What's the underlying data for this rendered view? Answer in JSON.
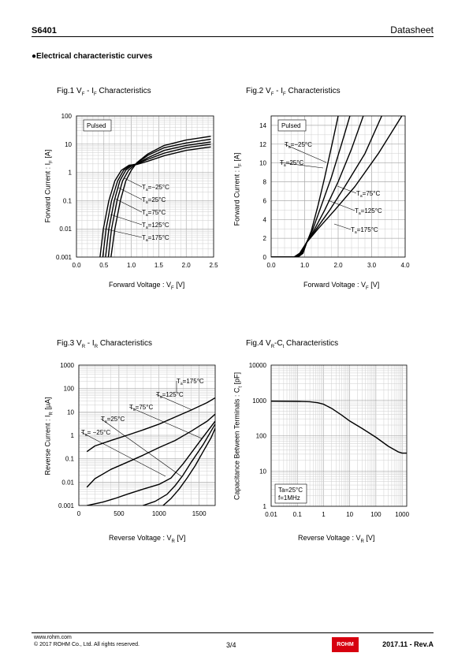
{
  "header": {
    "part_number": "S6401",
    "doc_type": "Datasheet"
  },
  "section_title": "●Electrical characteristic curves",
  "footer": {
    "url": "www.rohm.com",
    "copyright": "© 2017  ROHM Co., Ltd. All rights reserved.",
    "page": "3/4",
    "logo_text": "ROHM",
    "revision": "2017.11 -  Rev.A"
  },
  "colors": {
    "curve": "#000000",
    "grid_major": "#9a9a9a",
    "grid_minor": "#cfcfcf",
    "logo": "#d7000f"
  },
  "chart_data": [
    {
      "type": "line",
      "title": "Fig.1 VF - IF Characteristics",
      "xlabel": "Forward Voltage : VF   [V]",
      "ylabel": "Forward Current : IF   [A]",
      "xlim": [
        0,
        2.5
      ],
      "ylim": [
        0.001,
        100
      ],
      "yscale": "log",
      "xticks": [
        "0.0",
        "0.5",
        "1.0",
        "1.5",
        "2.0",
        "2.5"
      ],
      "yticks": [
        "0.001",
        "0.01",
        "0.1",
        "1",
        "10",
        "100"
      ],
      "grid": true,
      "legend_box": "Pulsed",
      "series": [
        {
          "name": "Ta=−25°C",
          "x": [
            0.63,
            0.7,
            0.8,
            0.9,
            1.0,
            1.1,
            1.3,
            1.6,
            2.0,
            2.45
          ],
          "y": [
            0.001,
            0.01,
            0.1,
            0.5,
            1.2,
            2.2,
            4.5,
            9,
            14,
            19
          ]
        },
        {
          "name": "Ta=25°C",
          "x": [
            0.58,
            0.64,
            0.74,
            0.84,
            0.95,
            1.05,
            1.1,
            1.3,
            1.6,
            2.0,
            2.45
          ],
          "y": [
            0.001,
            0.01,
            0.1,
            0.5,
            1.2,
            1.8,
            2.1,
            4,
            7.5,
            11,
            15
          ]
        },
        {
          "name": "Ta=75°C",
          "x": [
            0.53,
            0.59,
            0.69,
            0.79,
            0.9,
            1.02,
            1.1,
            1.3,
            1.6,
            2.0,
            2.45
          ],
          "y": [
            0.001,
            0.01,
            0.1,
            0.5,
            1.2,
            1.8,
            2.0,
            3.3,
            6,
            9,
            12
          ]
        },
        {
          "name": "Ta=125°C",
          "x": [
            0.48,
            0.54,
            0.64,
            0.75,
            0.86,
            0.99,
            1.1,
            1.3,
            1.6,
            2.0,
            2.45
          ],
          "y": [
            0.001,
            0.01,
            0.1,
            0.5,
            1.2,
            1.8,
            2.0,
            2.9,
            4.8,
            7.5,
            10
          ]
        },
        {
          "name": "Ta=175°C",
          "x": [
            0.43,
            0.49,
            0.59,
            0.7,
            0.82,
            0.96,
            1.1,
            1.3,
            1.6,
            2.0,
            2.45
          ],
          "y": [
            0.001,
            0.01,
            0.1,
            0.5,
            1.2,
            1.8,
            1.9,
            2.5,
            3.9,
            6,
            8
          ]
        }
      ]
    },
    {
      "type": "line",
      "title": "Fig.2 VF - IF Characteristics",
      "xlabel": "Forward Voltage : VF   [V]",
      "ylabel": "Forward Current : IF   [A]",
      "xlim": [
        0,
        4.0
      ],
      "ylim": [
        0,
        15
      ],
      "xticks": [
        "0.0",
        "1.0",
        "2.0",
        "3.0",
        "4.0"
      ],
      "yticks": [
        "0",
        "2",
        "4",
        "6",
        "8",
        "10",
        "12",
        "14"
      ],
      "grid": true,
      "legend_box": "Pulsed",
      "series": [
        {
          "name": "Ta=−25°C",
          "x": [
            0,
            0.8,
            0.95,
            1.05,
            1.2,
            1.4,
            1.6,
            1.85,
            2.0
          ],
          "y": [
            0,
            0,
            0.4,
            1.4,
            2.8,
            5.5,
            8.5,
            12.5,
            15
          ]
        },
        {
          "name": "Ta=25°C",
          "x": [
            0,
            0.78,
            0.92,
            1.05,
            1.25,
            1.5,
            1.8,
            2.1,
            2.35
          ],
          "y": [
            0,
            0,
            0.4,
            1.5,
            3,
            5.5,
            8.5,
            12,
            15
          ]
        },
        {
          "name": "Ta=75°C",
          "x": [
            0,
            0.75,
            0.9,
            1.05,
            1.3,
            1.6,
            2.0,
            2.4,
            2.75
          ],
          "y": [
            0,
            0,
            0.4,
            1.5,
            3,
            5,
            8,
            11.5,
            15
          ]
        },
        {
          "name": "Ta=125°C",
          "x": [
            0,
            0.72,
            0.88,
            1.05,
            1.35,
            1.75,
            2.2,
            2.8,
            3.3
          ],
          "y": [
            0,
            0,
            0.4,
            1.5,
            3,
            5,
            7.5,
            11,
            15
          ]
        },
        {
          "name": "Ta=175°C",
          "x": [
            0,
            0.68,
            0.85,
            1.05,
            1.4,
            1.9,
            2.5,
            3.2,
            3.9
          ],
          "y": [
            0,
            0,
            0.4,
            1.5,
            3,
            5,
            7.5,
            11,
            15
          ]
        }
      ]
    },
    {
      "type": "line",
      "title": "Fig.3 VR - IR Characteristics",
      "xlabel": "Reverse Voltage : VR   [V]",
      "ylabel": "Reverse Current : IR   [μA]",
      "xlim": [
        0,
        1700
      ],
      "ylim": [
        0.001,
        1000
      ],
      "yscale": "log",
      "xticks": [
        "0",
        "500",
        "1000",
        "1500"
      ],
      "yticks": [
        "0.001",
        "0.01",
        "0.1",
        "1",
        "10",
        "100",
        "1000"
      ],
      "grid": true,
      "series": [
        {
          "name": "Ta=175°C",
          "x": [
            100,
            200,
            400,
            600,
            800,
            1000,
            1200,
            1400,
            1600,
            1700
          ],
          "y": [
            0.2,
            0.35,
            0.6,
            1,
            1.7,
            3,
            6,
            12,
            25,
            40
          ]
        },
        {
          "name": "Ta=125°C",
          "x": [
            100,
            200,
            400,
            600,
            800,
            1000,
            1200,
            1400,
            1600,
            1700
          ],
          "y": [
            0.006,
            0.014,
            0.035,
            0.07,
            0.14,
            0.3,
            0.6,
            1.5,
            4,
            8
          ]
        },
        {
          "name": "Ta=75°C",
          "x": [
            100,
            300,
            450,
            600,
            800,
            1000,
            1150,
            1300,
            1500,
            1700
          ],
          "y": [
            0.001,
            0.0014,
            0.002,
            0.003,
            0.005,
            0.008,
            0.015,
            0.06,
            0.5,
            4
          ]
        },
        {
          "name": "Ta=25°C",
          "x": [
            800,
            950,
            1100,
            1200,
            1300,
            1400,
            1550,
            1700
          ],
          "y": [
            0.001,
            0.0015,
            0.003,
            0.007,
            0.02,
            0.07,
            0.4,
            3
          ]
        },
        {
          "name": "Ta=−25°C",
          "x": [
            1050,
            1150,
            1250,
            1350,
            1450,
            1550,
            1650,
            1700
          ],
          "y": [
            0.001,
            0.002,
            0.005,
            0.015,
            0.05,
            0.2,
            0.8,
            2
          ]
        }
      ]
    },
    {
      "type": "line",
      "title": "Fig.4 VR-Ct Characteristics",
      "xlabel": "Reverse Voltage : VR   [V]",
      "ylabel": "Capacitance Between Terminals : Ct   [pF]",
      "xlim": [
        0.01,
        1500
      ],
      "ylim": [
        1,
        10000
      ],
      "xscale": "log",
      "yscale": "log",
      "xticks": [
        "0.01",
        "0.1",
        "1",
        "10",
        "100",
        "1000"
      ],
      "yticks": [
        "1",
        "10",
        "100",
        "1000",
        "10000"
      ],
      "grid": true,
      "legend_box": [
        "Ta=25°C",
        "f=1MHz"
      ],
      "series": [
        {
          "name": "",
          "x": [
            0.01,
            0.1,
            0.3,
            0.6,
            1,
            2,
            5,
            10,
            30,
            100,
            300,
            700,
            1000,
            1500
          ],
          "y": [
            950,
            940,
            920,
            860,
            780,
            600,
            380,
            260,
            160,
            90,
            50,
            35,
            32,
            32
          ]
        }
      ]
    }
  ],
  "fig_labels": {
    "fig1": {
      "title_pre": "Fig.1 V",
      "title_sub1": "F",
      "title_mid": " - I",
      "title_sub2": "F",
      "title_post": " Characteristics",
      "ylabel": "Forward Current : I",
      "ylabel_sub": "F",
      "ylabel_unit": "   [A]",
      "xlabel": "Forward Voltage : V",
      "xlabel_sub": "F",
      "xlabel_unit": "   [V]",
      "temp_labels": [
        {
          "t": "T",
          "s": "a",
          "v": "=−25°C"
        },
        {
          "t": "T",
          "s": "a",
          "v": "=25°C"
        },
        {
          "t": "T",
          "s": "a",
          "v": "=75°C"
        },
        {
          "t": "T",
          "s": "a",
          "v": "=125°C"
        },
        {
          "t": "T",
          "s": "a",
          "v": "=175°C"
        }
      ]
    },
    "fig2": {
      "title_pre": "Fig.2 V",
      "title_sub1": "F",
      "title_mid": " - I",
      "title_sub2": "F",
      "title_post": " Characteristics",
      "ylabel": "Forward Current : I",
      "ylabel_sub": "F",
      "ylabel_unit": "   [A]",
      "xlabel": "Forward Voltage : V",
      "xlabel_sub": "F",
      "xlabel_unit": "   [V]",
      "temp_labels": [
        {
          "t": "T",
          "s": "a",
          "v": "=−25°C"
        },
        {
          "t": "T",
          "s": "a",
          "v": "=25°C"
        },
        {
          "t": "T",
          "s": "a",
          "v": "=75°C"
        },
        {
          "t": "T",
          "s": "a",
          "v": "=125°C"
        },
        {
          "t": "T",
          "s": "a",
          "v": "=175°C"
        }
      ]
    },
    "fig3": {
      "title_pre": "Fig.3 V",
      "title_sub1": "R",
      "title_mid": " - I",
      "title_sub2": "R",
      "title_post": " Characteristics",
      "ylabel": "Reverse Current : I",
      "ylabel_sub": "R",
      "ylabel_unit": "   [μA]",
      "xlabel": "Reverse Voltage : V",
      "xlabel_sub": "R",
      "xlabel_unit": "   [V]",
      "temp_labels": [
        {
          "t": "T",
          "s": "a",
          "v": "=175°C"
        },
        {
          "t": "T",
          "s": "a",
          "v": "=125°C"
        },
        {
          "t": "T",
          "s": "a",
          "v": "=75°C"
        },
        {
          "t": "T",
          "s": "a",
          "v": "=25°C"
        },
        {
          "t": "T",
          "s": "a",
          "v": "= −25°C"
        }
      ]
    },
    "fig4": {
      "title_pre": "Fig.4 V",
      "title_sub1": "R",
      "title_mid": "-C",
      "title_sub2": "t",
      "title_post": " Characteristics",
      "ylabel": "Capacitance Between Terminals : C",
      "ylabel_sub": "t",
      "ylabel_unit": "   [pF]",
      "xlabel": "Reverse Voltage : V",
      "xlabel_sub": "R",
      "xlabel_unit": "   [V]"
    }
  }
}
